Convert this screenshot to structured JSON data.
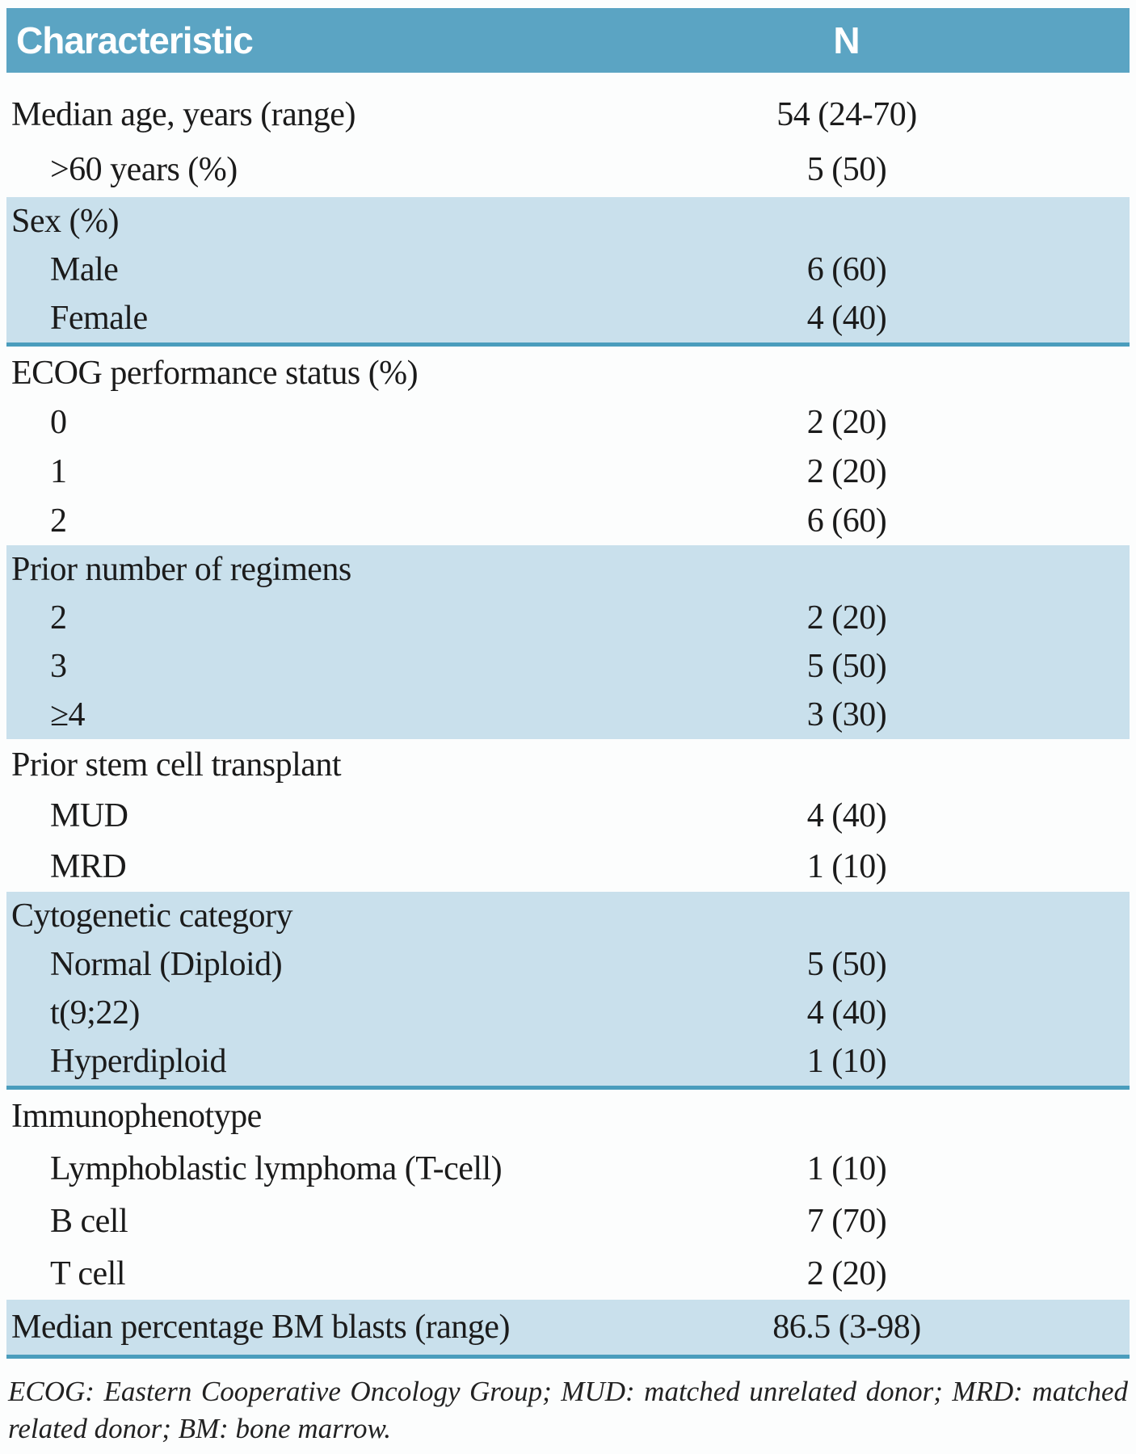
{
  "table": {
    "header": {
      "characteristic": "Characteristic",
      "n": "N"
    },
    "sections": [
      {
        "shaded": false,
        "rule_after": false,
        "rows": [
          {
            "label": "Median age, years (range)",
            "value": "54 (24-70)",
            "indent": false
          },
          {
            "label": ">60 years (%)",
            "value": "5 (50)",
            "indent": true
          }
        ]
      },
      {
        "shaded": true,
        "rule_after": true,
        "rows": [
          {
            "label": "Sex (%)",
            "value": "",
            "indent": false
          },
          {
            "label": "Male",
            "value": "6 (60)",
            "indent": true
          },
          {
            "label": "Female",
            "value": "4 (40)",
            "indent": true
          }
        ]
      },
      {
        "shaded": false,
        "rule_after": false,
        "rows": [
          {
            "label": "ECOG performance status (%)",
            "value": "",
            "indent": false
          },
          {
            "label": "0",
            "value": "2 (20)",
            "indent": true
          },
          {
            "label": "1",
            "value": "2 (20)",
            "indent": true
          },
          {
            "label": "2",
            "value": "6 (60)",
            "indent": true
          }
        ]
      },
      {
        "shaded": true,
        "rule_after": false,
        "rows": [
          {
            "label": "Prior number of regimens",
            "value": "",
            "indent": false
          },
          {
            "label": "2",
            "value": "2 (20)",
            "indent": true
          },
          {
            "label": "3",
            "value": "5 (50)",
            "indent": true
          },
          {
            "label": "≥4",
            "value": "3 (30)",
            "indent": true
          }
        ]
      },
      {
        "shaded": false,
        "rule_after": false,
        "rows": [
          {
            "label": "Prior stem cell transplant",
            "value": "",
            "indent": false
          },
          {
            "label": "MUD",
            "value": "4 (40)",
            "indent": true
          },
          {
            "label": "MRD",
            "value": "1 (10)",
            "indent": true
          }
        ]
      },
      {
        "shaded": true,
        "rule_after": true,
        "rows": [
          {
            "label": "Cytogenetic category",
            "value": "",
            "indent": false
          },
          {
            "label": "Normal (Diploid)",
            "value": "5 (50)",
            "indent": true
          },
          {
            "label": "t(9;22)",
            "value": "4 (40)",
            "indent": true
          },
          {
            "label": "Hyperdiploid",
            "value": "1 (10)",
            "indent": true
          }
        ]
      },
      {
        "shaded": false,
        "rule_after": false,
        "rows": [
          {
            "label": "Immunophenotype",
            "value": "",
            "indent": false
          },
          {
            "label": "Lymphoblastic lymphoma (T-cell)",
            "value": "1 (10)",
            "indent": true
          },
          {
            "label": "B cell",
            "value": "7 (70)",
            "indent": true
          },
          {
            "label": "T cell",
            "value": "2 (20)",
            "indent": true
          }
        ]
      },
      {
        "shaded": true,
        "rule_after": true,
        "rows": [
          {
            "label": "Median percentage BM blasts (range)",
            "value": "86.5 (3-98)",
            "indent": false
          }
        ]
      }
    ],
    "footnote": "ECOG: Eastern Cooperative Oncology Group; MUD: matched unrelated donor; MRD: matched related donor; BM: bone marrow."
  },
  "colors": {
    "header_bg": "#5ba4c3",
    "band_bg": "#c9e0ec",
    "rule": "#4a9dbd",
    "header_text": "#ffffff",
    "body_text": "#1b1b1b"
  }
}
